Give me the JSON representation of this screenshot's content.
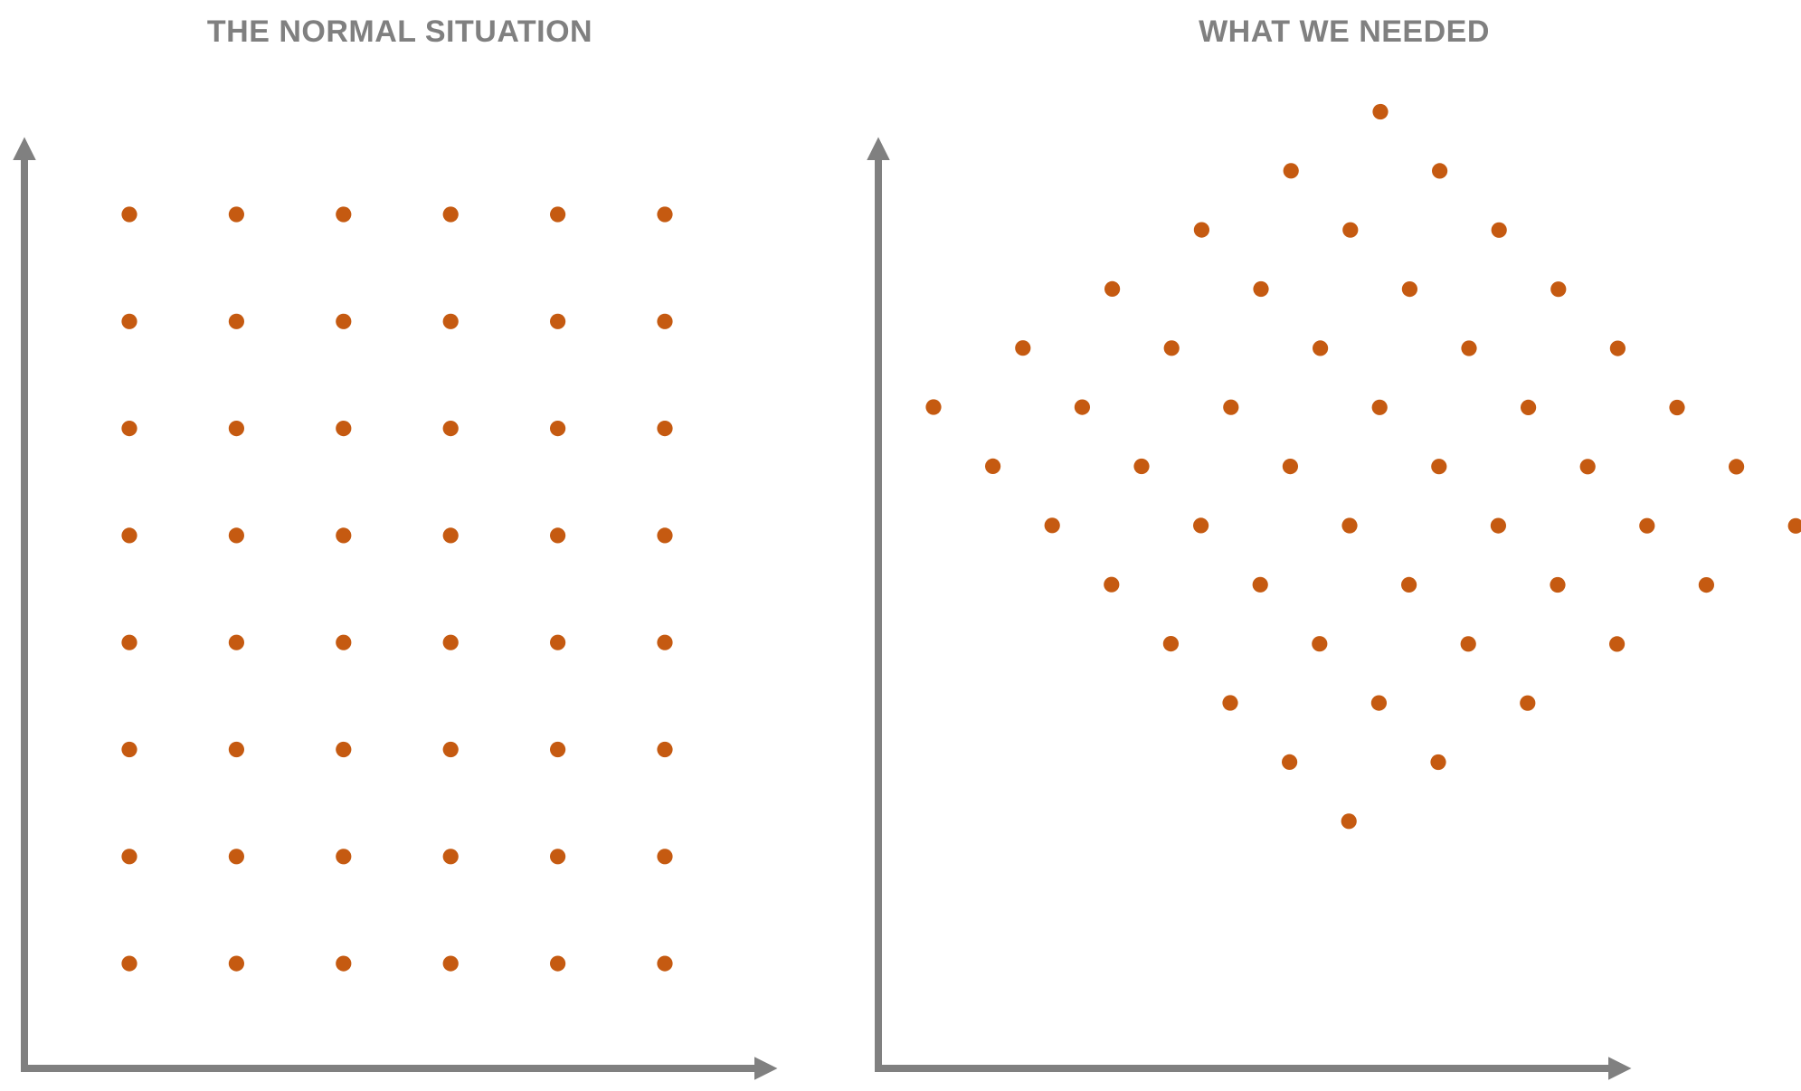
{
  "colors": {
    "axis": "#808080",
    "title": "#808080",
    "dot": "#C55A11",
    "background": "#FFFFFF"
  },
  "panels": [
    {
      "id": "left",
      "title": "THE NORMAL SITUATION",
      "grid": {
        "rows": 8,
        "cols": 6,
        "arrangement": "rectangular"
      }
    },
    {
      "id": "right",
      "title": "WHAT WE NEEDED",
      "grid": {
        "rows": 8,
        "cols": 6,
        "arrangement": "rotated"
      }
    }
  ]
}
